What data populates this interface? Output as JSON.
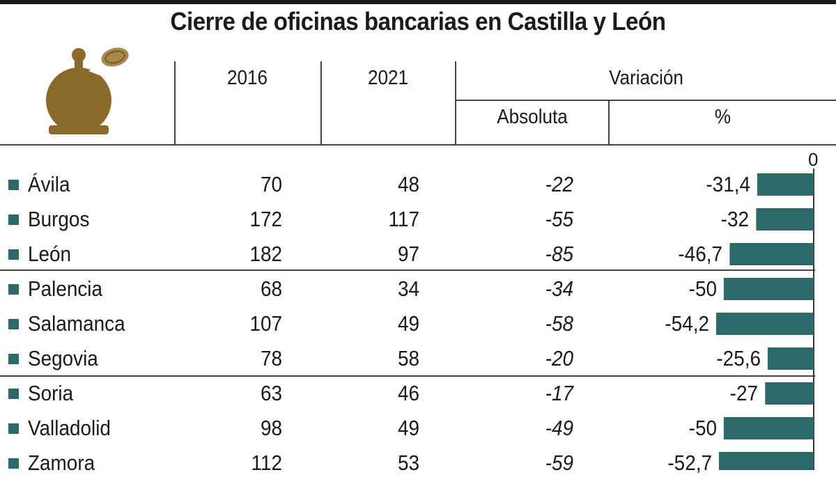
{
  "title": "Cierre de oficinas bancarias en Castilla y León",
  "headers": {
    "y2016": "2016",
    "y2021": "2021",
    "variacion": "Variación",
    "absoluta": "Absoluta",
    "pct": "%"
  },
  "zero_label": "0",
  "colors": {
    "bar": "#2c6a6a",
    "logo": "#8a6a2a",
    "bullet": "#2c6a6a"
  },
  "logo_icon": "piggy-bank-coin-icon",
  "rows": [
    {
      "name": "Ávila",
      "v2016": "70",
      "v2021": "48",
      "abs": "-22",
      "pct": "-31,4"
    },
    {
      "name": "Burgos",
      "v2016": "172",
      "v2021": "117",
      "abs": "-55",
      "pct": "-32"
    },
    {
      "name": "León",
      "v2016": "182",
      "v2021": "97",
      "abs": "-85",
      "pct": "-46,7"
    },
    {
      "name": "Palencia",
      "v2016": "68",
      "v2021": "34",
      "abs": "-34",
      "pct": "-50"
    },
    {
      "name": "Salamanca",
      "v2016": "107",
      "v2021": "49",
      "abs": "-58",
      "pct": "-54,2"
    },
    {
      "name": "Segovia",
      "v2016": "78",
      "v2021": "58",
      "abs": "-20",
      "pct": "-25,6"
    },
    {
      "name": "Soria",
      "v2016": "63",
      "v2021": "46",
      "abs": "-17",
      "pct": "-27"
    },
    {
      "name": "Valladolid",
      "v2016": "98",
      "v2021": "49",
      "abs": "-49",
      "pct": "-50"
    },
    {
      "name": "Zamora",
      "v2016": "112",
      "v2021": "53",
      "abs": "-59",
      "pct": "-52,7"
    }
  ],
  "chart_data": {
    "type": "bar",
    "orientation": "horizontal",
    "categories": [
      "Ávila",
      "Burgos",
      "León",
      "Palencia",
      "Salamanca",
      "Segovia",
      "Soria",
      "Valladolid",
      "Zamora"
    ],
    "values": [
      -31.4,
      -32,
      -46.7,
      -50,
      -54.2,
      -25.6,
      -27,
      -50,
      -52.7
    ],
    "title": "Cierre de oficinas bancarias en Castilla y León",
    "xlabel": "%",
    "ylabel": "",
    "xlim": [
      -55,
      0
    ],
    "grid": false
  }
}
